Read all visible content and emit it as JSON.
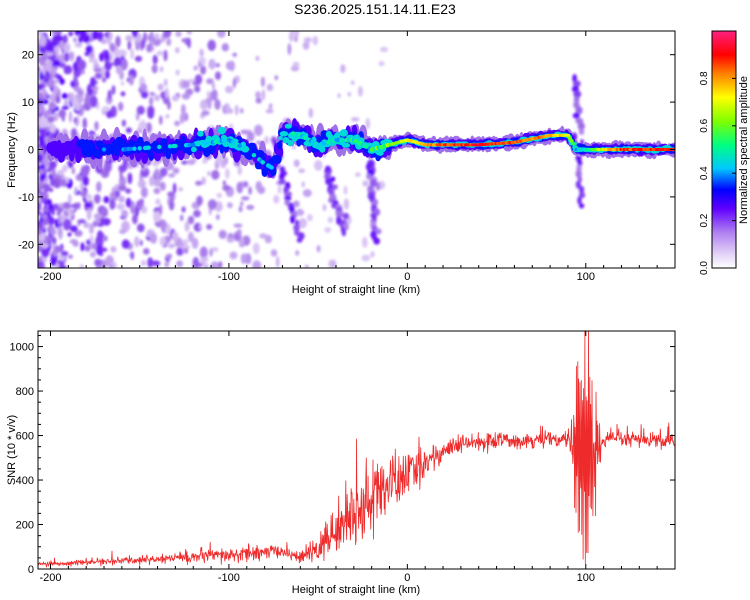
{
  "title": "S236.2025.151.14.11.E23",
  "colors": {
    "snr_line": "#ee2a2a",
    "colormap": [
      "#ffffff",
      "#dcc8f5",
      "#a070e8",
      "#5a00ff",
      "#0000ff",
      "#00c8ff",
      "#00ff80",
      "#80ff00",
      "#ffff00",
      "#ff8000",
      "#ff0000",
      "#ff2080"
    ]
  },
  "chart_data": [
    {
      "type": "heatmap",
      "xlabel": "Height of straight line (km)",
      "ylabel": "Frequency (Hz)",
      "xlim": [
        -207,
        150
      ],
      "ylim": [
        -25,
        25
      ],
      "xticks": [
        "-200",
        "-100",
        "0",
        "100"
      ],
      "yticks": [
        "20",
        "10",
        "0",
        "-10",
        "-20"
      ],
      "colorbar": {
        "label": "Normalized spectral amplitude",
        "range": [
          0,
          1
        ],
        "ticks": [
          "0.0",
          "0.2",
          "0.4",
          "0.6",
          "0.8"
        ]
      },
      "ridge": {
        "x": [
          -200,
          -180,
          -160,
          -140,
          -120,
          -100,
          -90,
          -80,
          -75,
          -70,
          -60,
          -50,
          -40,
          -30,
          -20,
          -10,
          0,
          10,
          20,
          40,
          60,
          80,
          90,
          95,
          100,
          110,
          120,
          150
        ],
        "y": [
          0,
          0,
          0,
          0.5,
          1,
          2,
          0,
          -3,
          -4,
          4,
          3,
          1,
          2,
          2,
          0,
          1,
          2,
          1,
          1,
          1,
          1.5,
          3,
          3,
          0,
          0,
          0,
          0,
          0
        ],
        "amplitude": [
          0.2,
          0.25,
          0.3,
          0.35,
          0.35,
          0.4,
          0.35,
          0.35,
          0.3,
          0.35,
          0.4,
          0.4,
          0.4,
          0.45,
          0.5,
          0.6,
          0.7,
          0.8,
          0.85,
          0.9,
          0.85,
          0.8,
          0.7,
          0.4,
          0.5,
          0.7,
          0.85,
          0.9
        ]
      }
    },
    {
      "type": "line",
      "xlabel": "Height of straight line (km)",
      "ylabel": "SNR (10 * v/v)",
      "xlim": [
        -207,
        150
      ],
      "ylim": [
        0,
        1070
      ],
      "xticks": [
        "-200",
        "-100",
        "0",
        "100"
      ],
      "yticks": [
        "0",
        "200",
        "400",
        "600",
        "800",
        "1000"
      ],
      "series": [
        {
          "trend_x": [
            -207,
            -180,
            -150,
            -120,
            -100,
            -80,
            -70,
            -60,
            -50,
            -40,
            -30,
            -20,
            -10,
            0,
            10,
            20,
            30,
            40,
            60,
            80,
            90,
            95,
            100,
            105,
            110,
            130,
            150
          ],
          "trend_y": [
            20,
            30,
            40,
            55,
            60,
            75,
            80,
            50,
            90,
            180,
            250,
            320,
            380,
            420,
            480,
            530,
            560,
            570,
            580,
            580,
            580,
            560,
            540,
            560,
            580,
            580,
            570
          ],
          "noise": [
            8,
            10,
            15,
            25,
            30,
            30,
            20,
            20,
            60,
            90,
            120,
            150,
            120,
            90,
            60,
            40,
            35,
            35,
            30,
            30,
            30,
            300,
            400,
            300,
            30,
            30,
            30
          ]
        }
      ]
    }
  ]
}
